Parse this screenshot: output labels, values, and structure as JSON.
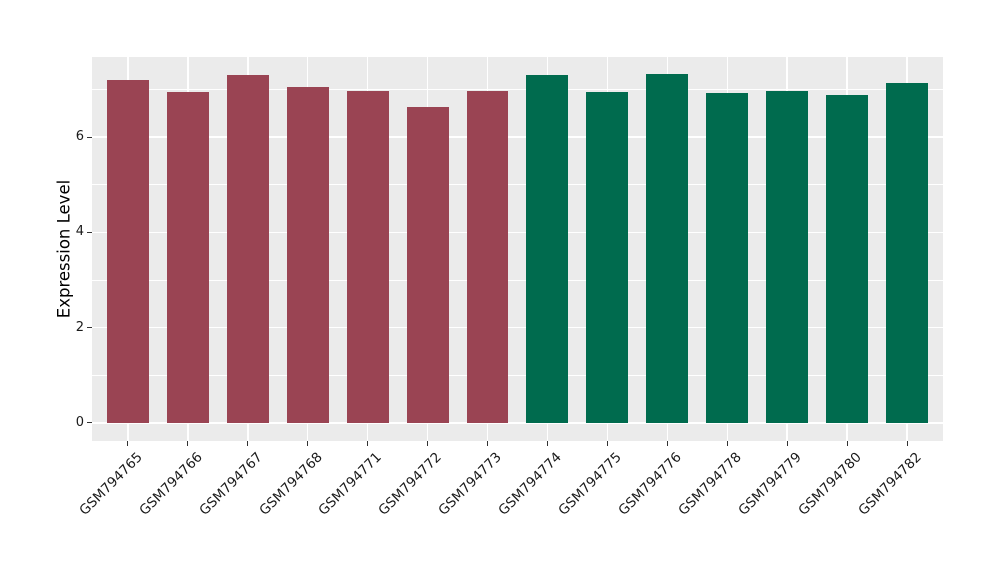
{
  "figure": {
    "background": "#FFFFFF",
    "panel_background": "#EBEBEB",
    "grid_color": "#FFFFFF",
    "tick_color": "#333333",
    "text_color": "#1A1A1A"
  },
  "chart_data": {
    "type": "bar",
    "title": "",
    "xlabel": "",
    "ylabel": "Expression Level",
    "categories": [
      "GSM794765",
      "GSM794766",
      "GSM794767",
      "GSM794768",
      "GSM794771",
      "GSM794772",
      "GSM794773",
      "GSM794774",
      "GSM794775",
      "GSM794776",
      "GSM794778",
      "GSM794779",
      "GSM794780",
      "GSM794782"
    ],
    "values": [
      7.2,
      6.94,
      7.3,
      7.04,
      6.96,
      6.63,
      6.97,
      7.31,
      6.94,
      7.33,
      6.92,
      6.97,
      6.88,
      7.13
    ],
    "bar_groups": [
      0,
      0,
      0,
      0,
      0,
      0,
      0,
      1,
      1,
      1,
      1,
      1,
      1,
      1
    ],
    "group_colors": [
      "#9A4453",
      "#006B4E"
    ],
    "ylim": [
      -0.38,
      7.68
    ],
    "yticks": [
      0,
      2,
      4,
      6
    ],
    "yticks_minor": [
      1,
      3,
      5,
      7
    ],
    "grid": "major and minor horizontal white lines, vertical white line at each bar center",
    "legend": "none",
    "bar_width_fraction": 0.7,
    "x_label_rotation_deg": 45
  }
}
